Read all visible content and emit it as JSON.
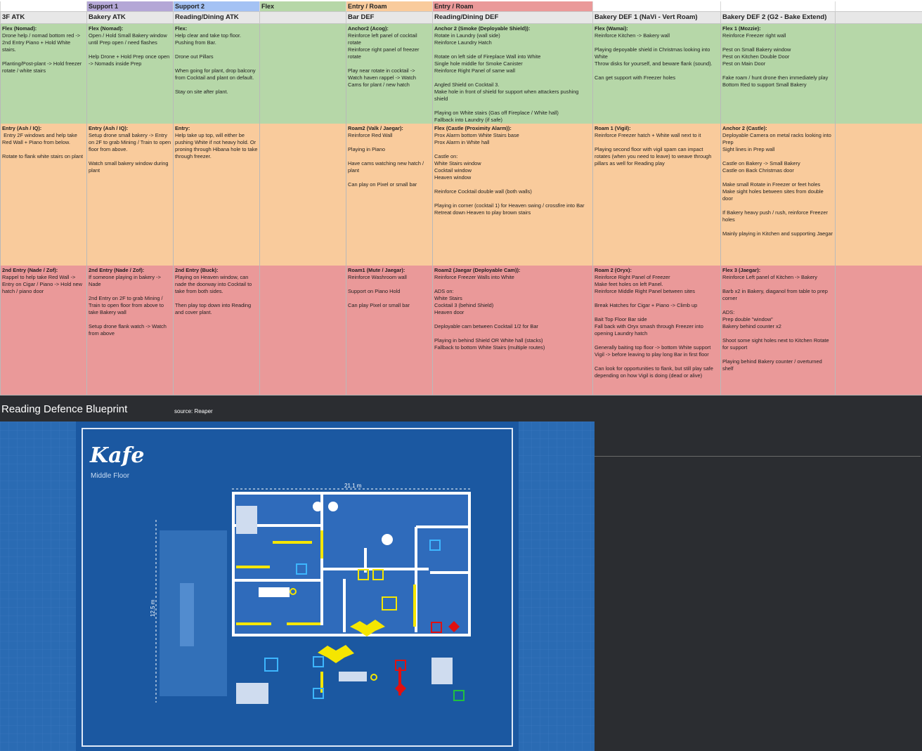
{
  "role_row": [
    "",
    "Support 1",
    "Support 2",
    "Flex",
    "Entry / Roam",
    "Entry / Roam",
    "",
    "",
    ""
  ],
  "role_colors": [
    "#ffffff",
    "#b4a7d6",
    "#a4c2f4",
    "#b6d7a8",
    "#f9cb9c",
    "#ea9999",
    "#ffffff",
    "#ffffff",
    "#ffffff"
  ],
  "headers": [
    "3F ATK",
    "Bakery ATK",
    "Reading/Dining ATK",
    "",
    "Bar DEF",
    "Reading/Dining DEF",
    "Bakery DEF 1 (NaVi - Vert Roam)",
    "Bakery DEF 2 (G2 - Bake Extend)",
    ""
  ],
  "bands": [
    {
      "color": "#b6d7a8",
      "cells": [
        {
          "title": "Flex (Nomad):",
          "body": "Drone help / nomad bottom red -> 2nd Entry Piano + Hold White stairs.\n\nPlanting/Post-plant -> Hold freezer rotate / white stairs"
        },
        {
          "title": "Flex (Nomad):",
          "body": "Open / Hold Small Bakery window until Prep open / need flashes\n\nHelp Drone + Hold Prep once open -> Nomads inside Prep"
        },
        {
          "title": "Flex:",
          "body": "Help clear and take top floor. Pushing from Bar.\n\nDrone out Pillars\n\nWhen going for plant, drop balcony from Cocktail and plant on default.\n\nStay on site after plant."
        },
        {
          "title": "",
          "body": ""
        },
        {
          "title": "Anchor2 (Acog):",
          "body": "Reinforce left panel of cocktail rotate\nReinforce right panel of freezer rotate\n\nPlay near rotate in cocktail -> Watch haven rappel -> Watch Cams for plant / new hatch"
        },
        {
          "title": "Anchor 2 (Smoke (Deployable Shield)):",
          "body": "Rotate in Laundry (wall side)\nReinforce Laundry Hatch\n\nRotate on left side of Fireplace Wall into White\nSingle hole middle for Smoke Canister\nReinforce Right Panel of same wall\n\nAngled Shield on Cocktail 3.\nMake hole in front of shield for support when attackers pushing shield\n\nPlaying on White stairs (Gas off Fireplace / White hall)\nFallback into Laundry (if safe)"
        },
        {
          "title": "Flex (Wamai):",
          "body": "Reinforce Kitchen -> Bakery wall\n\nPlaying depoyable shield in Christmas looking into White\nThrow disks for yourself, and beware flank (sound).\n\nCan get support with Freezer holes"
        },
        {
          "title": "Flex 1 (Mozzie):",
          "body": "Reinforce Freezer right wall\n\nPest on Small Bakery window\nPest on Kitchen Double Door\nPest on Main Door\n\nFake roam / hunt drone then immediately play Bottom Red to support Small Bakery"
        },
        {
          "title": "",
          "body": ""
        }
      ]
    },
    {
      "color": "#f9cb9c",
      "cells": [
        {
          "title": "Entry (Ash / IQ):",
          "body": " Entry 2F windows and help take Red Wall + Piano from below.\n\nRotate to flank white stairs on plant"
        },
        {
          "title": "Entry (Ash / IQ):",
          "body": "Setup drone small bakery -> Entry on 2F to grab Mining / Train to open floor from above.\n\nWatch small bakery window during plant"
        },
        {
          "title": "Entry:",
          "body": "Help take up top, will either be pushing White if not heavy hold. Or proning through Hibana hole to take through freezer."
        },
        {
          "title": "",
          "body": ""
        },
        {
          "title": "Roam2 (Valk / Jaegar):",
          "body": "Reinforce Red Wall\n\nPlaying in Piano\n\nHave cams watching new hatch / plant\n\nCan play on Pixel or small bar"
        },
        {
          "title": "Flex (Castle (Proximity Alarm)):",
          "body": "Prox Alarm bottom White Stairs base\nProx Alarm in White hall\n\nCastle on:\nWhite Stairs window\nCocktail window\nHeaven window\n\nReinforce Cocktail double wall (both walls)\n\nPlaying in corner (cocktail 1) for Heaven swing / crossfire into Bar\nRetreat down Heaven to play brown stairs"
        },
        {
          "title": "Roam 1 (Vigil):",
          "body": "Reinforce Freezer hatch + White wall next to it\n\nPlaying second floor with vigil spam can impact rotates (when you need to leave) to weave through pillars as well for Reading play"
        },
        {
          "title": "Anchor 2 (Castle):",
          "body": "Deployable Camera on metal racks looking into Prep\nSight lines in Prep wall\n\nCastle on Bakery -> Small Bakery\nCastle on Back Christmas door\n\nMake small Rotate in Freezer or feet holes\nMake sight holes between sites from double door\n\nIf Bakery heavy push / rush, reinforce Freezer holes\n\nMainly playing in Kitchen and supporting Jaegar"
        },
        {
          "title": "",
          "body": ""
        }
      ]
    },
    {
      "color": "#ea9999",
      "cells": [
        {
          "title": "2nd Entry (Nade / Zof):",
          "body": "Rappel to help take Red Wall -> Entry on Cigar / Piano -> Hold new hatch / piano door"
        },
        {
          "title": "2nd Entry (Nade / Zof):",
          "body": "If someone playing in bakery -> Nade\n\n2nd Entry on 2F to grab Mining / Train to open floor from above to take Bakery wall\n\nSetup drone flank watch -> Watch from above"
        },
        {
          "title": "2nd Entry (Buck):",
          "body": "Playing on Heaven window, can nade the doorway into Cocktail to take from both sides.\n\nThen play top down into Reading and cover plant."
        },
        {
          "title": "",
          "body": ""
        },
        {
          "title": "Roam1 (Mute / Jaegar):",
          "body": "Reinforce Washroom wall\n\nSupport on Piano Hold\n\nCan play Pixel or small bar"
        },
        {
          "title": "Roam2 (Jaegar (Deployable Cam)):",
          "body": "Reinforce Freezer Walls into White\n\nADS on:\nWhite Stairs\nCocktail 3 (behind Shield)\nHeaven door\n\nDeployable cam between Cocktail 1/2 for Bar\n\nPlaying in behind Shield OR White hall (stacks)\nFallback to bottom White Stairs (multiple routes)"
        },
        {
          "title": "Roam 2 (Oryx):",
          "body": "Reinforce Right Panel of Freezer\nMake feet holes on left Panel.\nReinforce Middle Right Panel between sites\n\nBreak Hatches for Cigar + Piano -> Climb up\n\nBait Top Floor Bar side\nFall back with Oryx smash through Freezer into opening Laundry hatch\n\nGenerally baiting top floor -> bottom White support Vigil -> before leaving to play long Bar in first floor\n\nCan look for opportunities to flank, but still play safe depending on how Vigil is doing (dead or alive)"
        },
        {
          "title": "Flex 3 (Jaegar):",
          "body": "Reinforce Left panel of Kitchen -> Bakery\n\nBarb x2 in Bakery, diaganol from table to prep corner\n\nADS:\nPrep double \"window\"\nBakery behind counter x2\n\nShoot some sight holes next to Kitchen Rotate for support\n\nPlaying behind Bakery counter / overturned shelf"
        },
        {
          "title": "",
          "body": ""
        }
      ]
    }
  ],
  "blueprint": {
    "title": "Reading Defence Blueprint",
    "source": "source: Reaper",
    "map_name": "Kafe",
    "floor": "Middle Floor",
    "width_label": "21.1 m",
    "height_label": "12.5 m",
    "colors": {
      "blue": "#1f5fa8",
      "frame": "#dfe9f7",
      "yellow": "#f5e600",
      "red": "#e01010"
    }
  }
}
